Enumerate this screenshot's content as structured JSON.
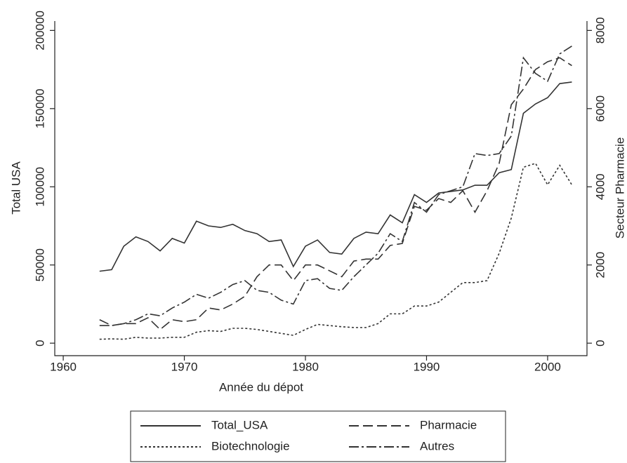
{
  "chart_data": {
    "type": "line",
    "x_label": "Année du dépot",
    "y_label": "Total USA",
    "y2_label": "Secteur Pharmacie",
    "x": [
      1963,
      1964,
      1965,
      1966,
      1967,
      1968,
      1969,
      1970,
      1971,
      1972,
      1973,
      1974,
      1975,
      1976,
      1977,
      1978,
      1979,
      1980,
      1981,
      1982,
      1983,
      1984,
      1985,
      1986,
      1987,
      1988,
      1989,
      1990,
      1991,
      1992,
      1993,
      1994,
      1995,
      1996,
      1997,
      1998,
      1999,
      2000,
      2001,
      2002
    ],
    "series": [
      {
        "name": "Total_USA",
        "color": "#333333",
        "style": "solid",
        "axis": "y",
        "values": [
          46000,
          47000,
          62000,
          68000,
          65000,
          59000,
          67000,
          64000,
          78000,
          75000,
          74000,
          76000,
          72000,
          70000,
          65000,
          66000,
          49000,
          62000,
          66000,
          58000,
          57000,
          67000,
          71000,
          70000,
          82000,
          77000,
          95000,
          90000,
          96000,
          97000,
          98000,
          101000,
          101000,
          109000,
          111000,
          147000,
          153000,
          157000,
          166000,
          167000
        ]
      },
      {
        "name": "Pharmacie",
        "color": "#333333",
        "style": "dashed",
        "axis": "y2",
        "values": [
          600,
          450,
          500,
          500,
          650,
          350,
          600,
          550,
          600,
          900,
          850,
          1000,
          1200,
          1700,
          2000,
          2000,
          1600,
          2000,
          2000,
          1850,
          1700,
          2100,
          2150,
          2150,
          2500,
          2550,
          3500,
          3400,
          3700,
          3600,
          3900,
          3350,
          3900,
          4600,
          6100,
          6500,
          7000,
          7200,
          7300,
          7100
        ]
      },
      {
        "name": "Biotechnologie",
        "color": "#333333",
        "style": "dotted",
        "axis": "y2",
        "values": [
          100,
          110,
          100,
          150,
          130,
          130,
          150,
          150,
          280,
          320,
          300,
          380,
          380,
          350,
          300,
          250,
          200,
          350,
          480,
          450,
          420,
          400,
          400,
          500,
          750,
          750,
          950,
          950,
          1050,
          1300,
          1550,
          1550,
          1600,
          2300,
          3200,
          4500,
          4600,
          4050,
          4550,
          4050
        ]
      },
      {
        "name": "Autres",
        "color": "#333333",
        "style": "dashdot",
        "axis": "y2",
        "values": [
          450,
          450,
          500,
          600,
          750,
          700,
          900,
          1050,
          1250,
          1150,
          1300,
          1500,
          1600,
          1350,
          1300,
          1100,
          1000,
          1600,
          1650,
          1400,
          1350,
          1700,
          2000,
          2300,
          2800,
          2600,
          3600,
          3350,
          3800,
          3900,
          4000,
          4850,
          4800,
          4850,
          5300,
          7300,
          6900,
          6700,
          7400,
          7600
        ]
      }
    ],
    "xlim": [
      1959.3,
      2003.25
    ],
    "xticks": [
      1960,
      1970,
      1980,
      1990,
      2000
    ],
    "ylim": [
      -8000,
      206000
    ],
    "yticks": [
      0,
      50000,
      100000,
      150000,
      200000
    ],
    "y2lim": [
      -320,
      8240
    ],
    "y2ticks": [
      0,
      2000,
      4000,
      6000,
      8000
    ],
    "legend": "bottom",
    "grid": false
  }
}
